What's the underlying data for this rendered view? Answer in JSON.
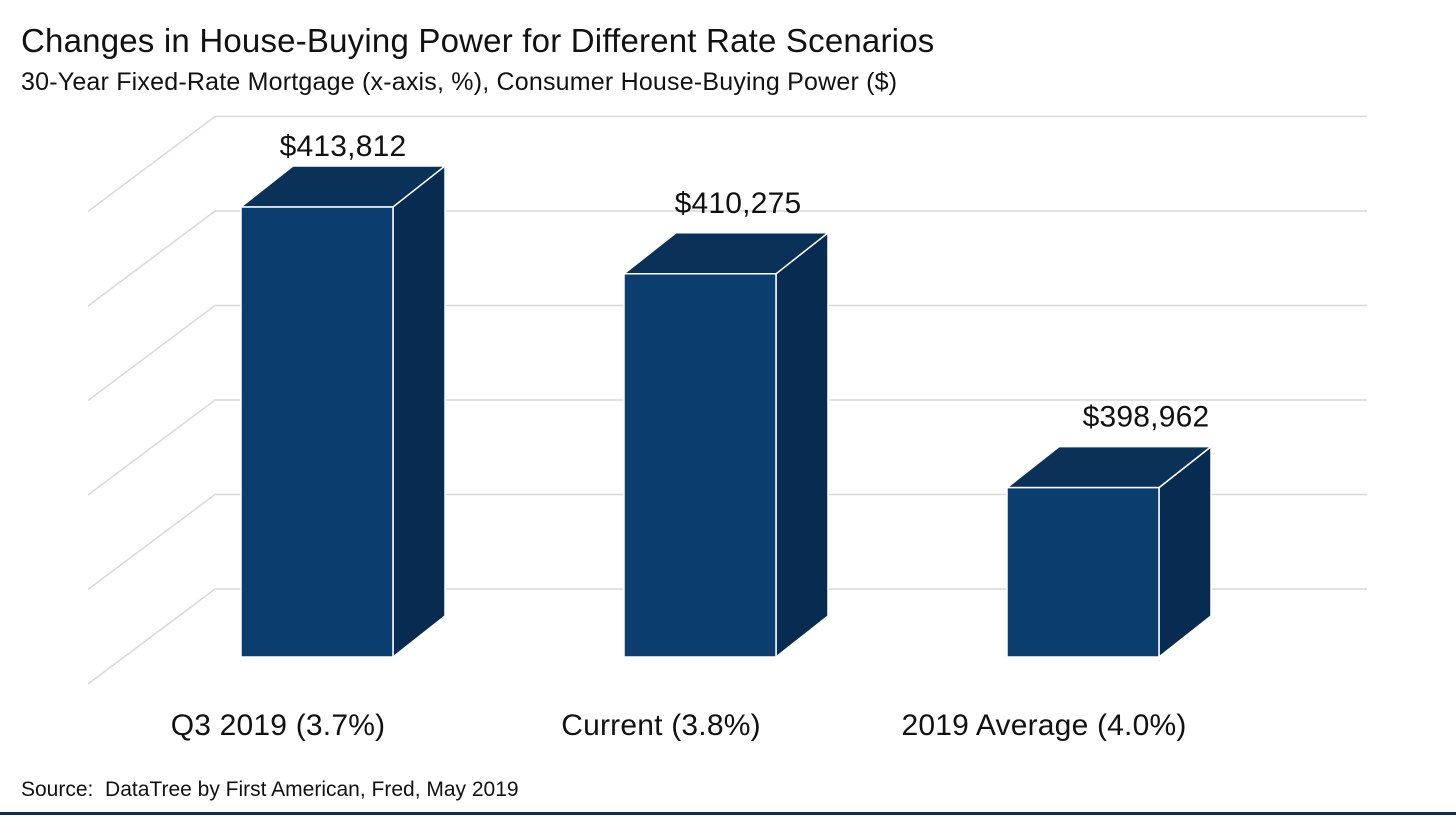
{
  "header": {
    "title": "Changes in House-Buying Power for Different Rate Scenarios",
    "subtitle": "30-Year Fixed-Rate Mortgage (x-axis, %), Consumer House-Buying Power ($)"
  },
  "footer": {
    "source": "Source:  DataTree by First American, Fred, May 2019"
  },
  "colors": {
    "bar_front": "#0b3d6f",
    "bar_top": "#0a3157",
    "bar_side": "#082c51",
    "edge": "#ffffff",
    "gridline": "#d9d9d9",
    "label_text": "#111111",
    "footer_bar": "#0c2d52"
  },
  "chart_data": {
    "type": "bar",
    "style": "3d-column",
    "title": "Changes in House-Buying Power for Different Rate Scenarios",
    "subtitle": "30-Year Fixed-Rate Mortgage (x-axis, %), Consumer House-Buying Power ($)",
    "categories": [
      "Q3 2019 (3.7%)",
      "Current (3.8%)",
      "2019 Average (4.0%)"
    ],
    "values": [
      413812,
      410275,
      398962
    ],
    "value_labels": [
      "$413,812",
      "$410,275",
      "$398,962"
    ],
    "xlabel": "30-Year Fixed-Rate Mortgage (%)",
    "ylabel": "Consumer House-Buying Power ($)",
    "ylim": [
      390000,
      415000
    ],
    "gridline_step": 5000,
    "grid": true,
    "legend": false,
    "source": "Source:  DataTree by First American, Fred, May 2019"
  }
}
